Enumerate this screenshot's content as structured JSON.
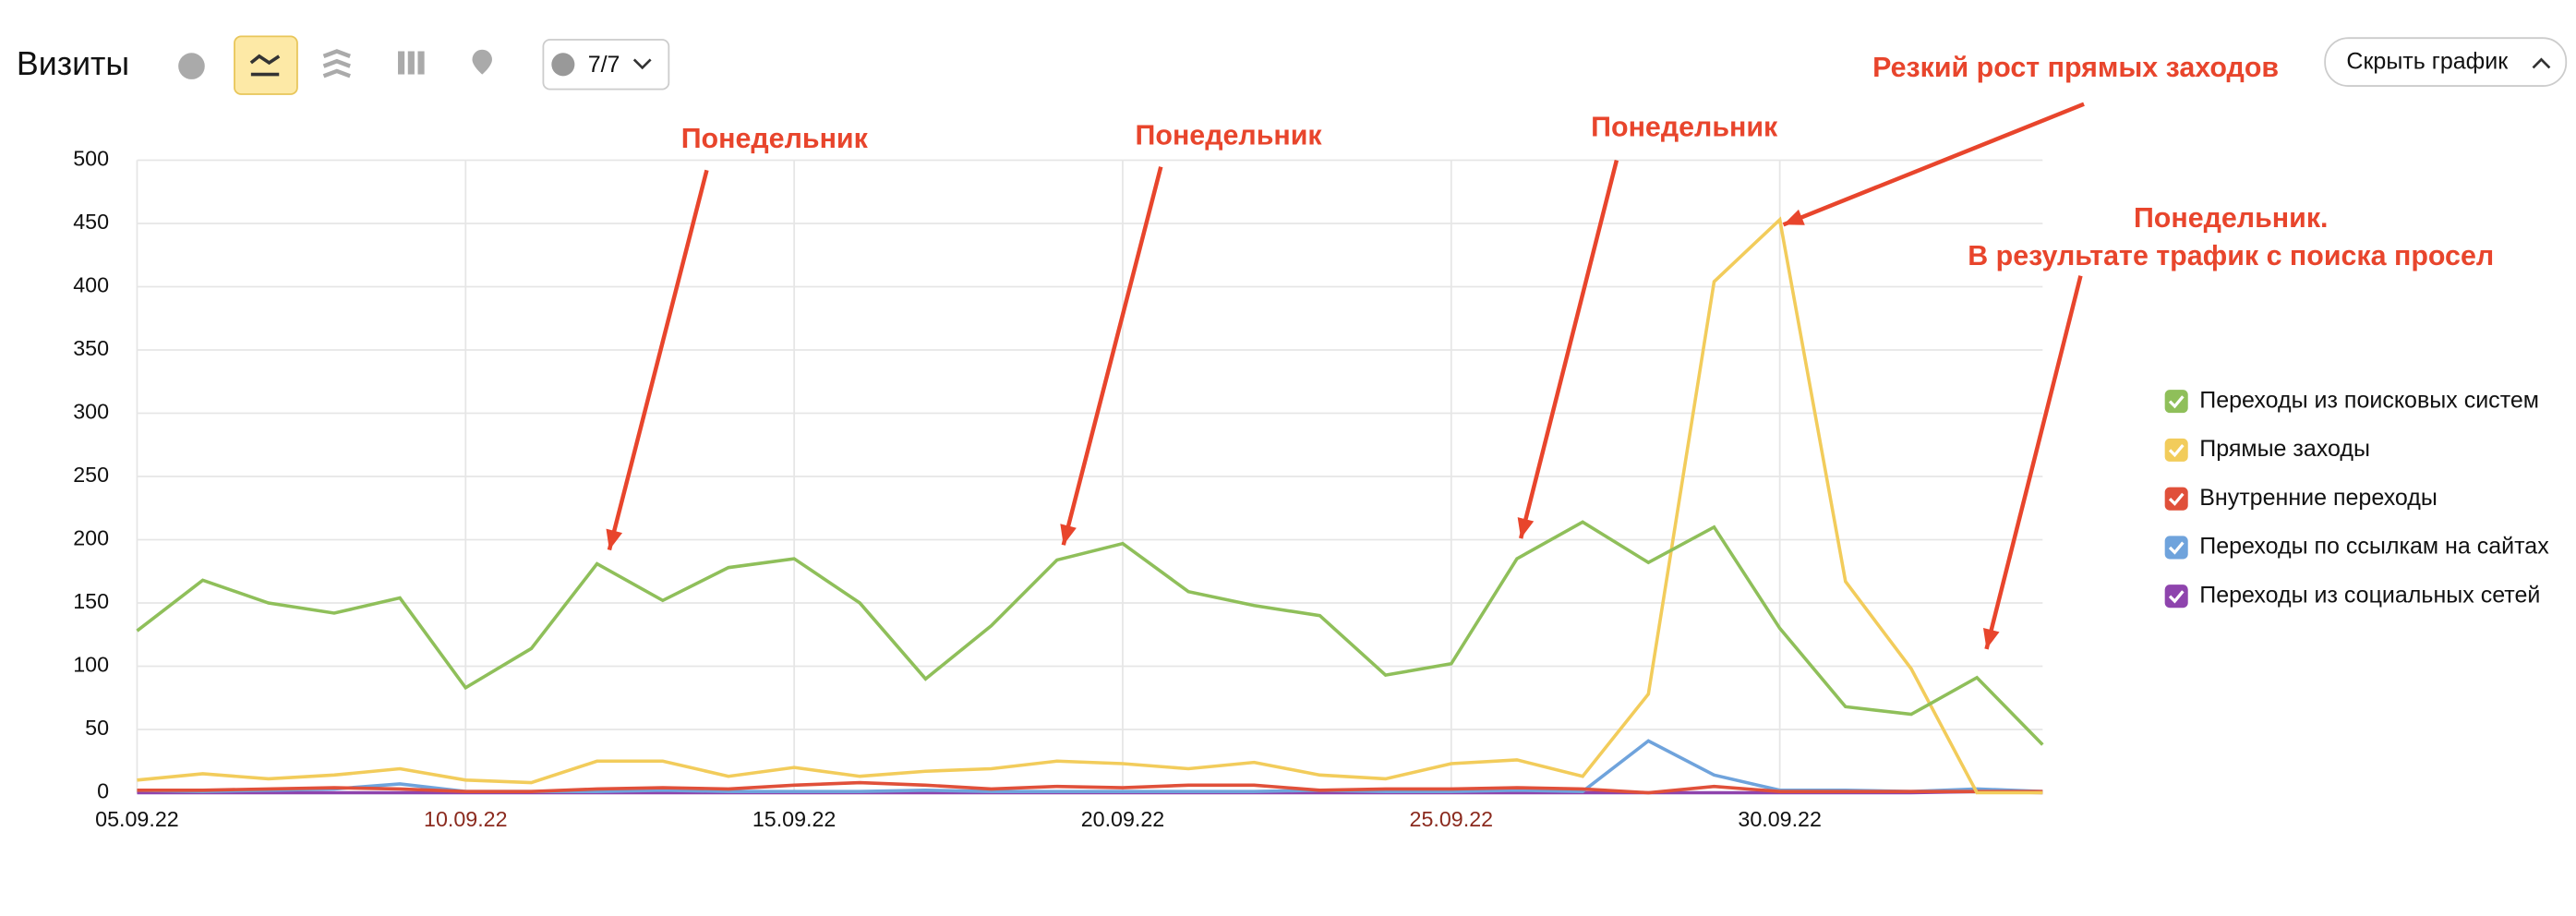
{
  "header": {
    "title": "Визиты",
    "counter": "7/7",
    "hide_button": "Скрыть график"
  },
  "chart_data": {
    "type": "line",
    "categories": [
      "05.09.22",
      null,
      null,
      null,
      null,
      "10.09.22",
      null,
      null,
      null,
      null,
      "15.09.22",
      null,
      null,
      null,
      null,
      "20.09.22",
      null,
      null,
      null,
      null,
      "25.09.22",
      null,
      null,
      null,
      null,
      "30.09.22",
      null,
      null,
      null,
      null
    ],
    "weekend_categories": [
      "10.09.22",
      "25.09.22"
    ],
    "weekend_color": "#8b2a1e",
    "series": [
      {
        "name": "Переходы из поисковых систем",
        "color": "#8fbf5a",
        "values": [
          128,
          168,
          150,
          142,
          154,
          83,
          114,
          181,
          152,
          178,
          185,
          150,
          90,
          132,
          184,
          197,
          159,
          148,
          140,
          93,
          102,
          185,
          214,
          182,
          210,
          130,
          68,
          62,
          91,
          38
        ]
      },
      {
        "name": "Прямые заходы",
        "color": "#f2cc5b",
        "values": [
          10,
          15,
          11,
          14,
          19,
          10,
          8,
          25,
          25,
          13,
          20,
          13,
          17,
          19,
          25,
          23,
          19,
          24,
          14,
          11,
          23,
          26,
          13,
          78,
          404,
          453,
          167,
          98,
          0,
          0
        ]
      },
      {
        "name": "Внутренние переходы",
        "color": "#e0503a",
        "values": [
          2,
          2,
          3,
          4,
          3,
          1,
          1,
          3,
          4,
          3,
          6,
          8,
          6,
          3,
          5,
          4,
          6,
          6,
          2,
          3,
          3,
          4,
          3,
          0,
          5,
          1,
          1,
          1,
          1,
          1
        ]
      },
      {
        "name": "Переходы по ссылкам на сайтах",
        "color": "#6fa3dc",
        "values": [
          2,
          1,
          2,
          3,
          7,
          1,
          1,
          1,
          2,
          1,
          1,
          1,
          2,
          1,
          1,
          1,
          1,
          1,
          2,
          1,
          1,
          2,
          1,
          41,
          14,
          2,
          2,
          1,
          3,
          1
        ]
      },
      {
        "name": "Переходы из социальных сетей",
        "color": "#8e44ad",
        "values": [
          0,
          0,
          0,
          0,
          0,
          0,
          0,
          0,
          0,
          0,
          0,
          0,
          0,
          0,
          0,
          0,
          0,
          0,
          0,
          0,
          0,
          0,
          0,
          0,
          0,
          0,
          0,
          0,
          1,
          0
        ]
      }
    ],
    "ylim": [
      0,
      500
    ],
    "yticks": [
      0,
      50,
      100,
      150,
      200,
      250,
      300,
      350,
      400,
      450,
      500
    ],
    "grid": true,
    "annotations": [
      "Понедельник",
      "Понедельник",
      "Понедельник",
      "Резкий рост прямых заходов",
      "Понедельник.",
      "В результате трафик с поиска просел"
    ],
    "annotation_color": "#e8452c"
  }
}
